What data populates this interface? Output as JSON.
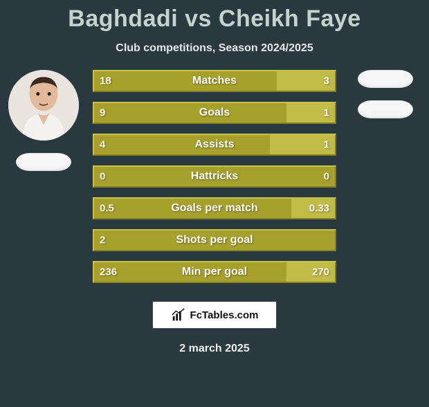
{
  "title": "Baghdadi vs Cheikh Faye",
  "subtitle": "Club competitions, Season 2024/2025",
  "footer_date": "2 march 2025",
  "logo_text": "FcTables.com",
  "colors": {
    "background": "#2a3840",
    "title": "#c4d3cc",
    "left_fill": "#a7a12c",
    "right_fill": "#c2bb45",
    "border_hi": "#c8c24e",
    "border_lo": "#857f1f",
    "text": "#ffffff"
  },
  "stats": [
    {
      "label": "Matches",
      "left_text": "18",
      "right_text": "3",
      "left_pct": 76,
      "right_pct": 24
    },
    {
      "label": "Goals",
      "left_text": "9",
      "right_text": "1",
      "left_pct": 80,
      "right_pct": 20
    },
    {
      "label": "Assists",
      "left_text": "4",
      "right_text": "1",
      "left_pct": 73,
      "right_pct": 27
    },
    {
      "label": "Hattricks",
      "left_text": "0",
      "right_text": "0",
      "left_pct": 100,
      "right_pct": 0
    },
    {
      "label": "Goals per match",
      "left_text": "0.5",
      "right_text": "0.33",
      "left_pct": 82,
      "right_pct": 18
    },
    {
      "label": "Shots per goal",
      "left_text": "2",
      "right_text": "",
      "left_pct": 100,
      "right_pct": 0
    },
    {
      "label": "Min per goal",
      "left_text": "236",
      "right_text": "270",
      "left_pct": 80,
      "right_pct": 20
    }
  ]
}
